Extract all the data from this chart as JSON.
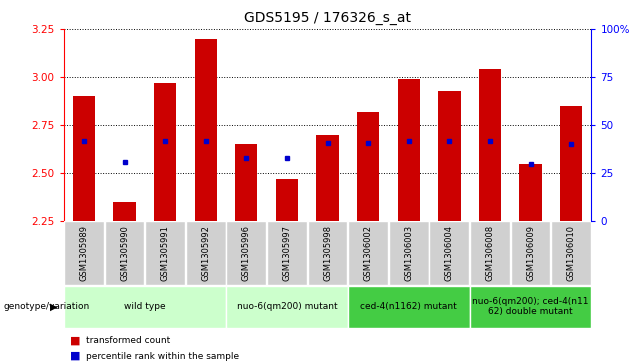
{
  "title": "GDS5195 / 176326_s_at",
  "samples": [
    "GSM1305989",
    "GSM1305990",
    "GSM1305991",
    "GSM1305992",
    "GSM1305996",
    "GSM1305997",
    "GSM1305998",
    "GSM1306002",
    "GSM1306003",
    "GSM1306004",
    "GSM1306008",
    "GSM1306009",
    "GSM1306010"
  ],
  "transformed_count": [
    2.9,
    2.35,
    2.97,
    3.2,
    2.65,
    2.47,
    2.7,
    2.82,
    2.99,
    2.93,
    3.04,
    2.55,
    2.85
  ],
  "percentile_rank": [
    42,
    31,
    42,
    42,
    33,
    33,
    41,
    41,
    42,
    42,
    42,
    30,
    40
  ],
  "ylim_left": [
    2.25,
    3.25
  ],
  "ylim_right": [
    0,
    100
  ],
  "yticks_left": [
    2.25,
    2.5,
    2.75,
    3.0,
    3.25
  ],
  "yticks_right": [
    0,
    25,
    50,
    75,
    100
  ],
  "bar_color": "#cc0000",
  "marker_color": "#0000cc",
  "baseline": 2.25,
  "groups": [
    {
      "label": "wild type",
      "indices": [
        0,
        1,
        2,
        3
      ],
      "color": "#ccffcc"
    },
    {
      "label": "nuo-6(qm200) mutant",
      "indices": [
        4,
        5,
        6
      ],
      "color": "#ccffcc"
    },
    {
      "label": "ced-4(n1162) mutant",
      "indices": [
        7,
        8,
        9
      ],
      "color": "#44cc44"
    },
    {
      "label": "nuo-6(qm200); ced-4(n11\n62) double mutant",
      "indices": [
        10,
        11,
        12
      ],
      "color": "#44cc44"
    }
  ],
  "genotype_label": "genotype/variation",
  "legend_items": [
    {
      "label": "transformed count",
      "color": "#cc0000"
    },
    {
      "label": "percentile rank within the sample",
      "color": "#0000cc"
    }
  ]
}
